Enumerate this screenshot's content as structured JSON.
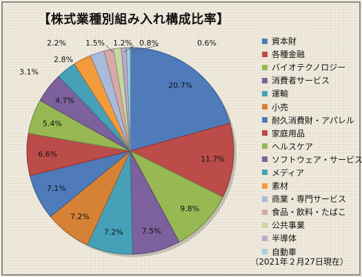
{
  "chart_data": {
    "type": "pie",
    "title": "【株式業種別組み入れ構成比率】",
    "footnote": "（2021年２月27日現在）",
    "slices": [
      {
        "name": "資本財",
        "value": 20.7,
        "label": "20.7%",
        "color": "#4f7bbb"
      },
      {
        "name": "各種金融",
        "value": 11.7,
        "label": "11.7%",
        "color": "#bb4c4a"
      },
      {
        "name": "バイオテクノロジー",
        "value": 9.8,
        "label": "9.8%",
        "color": "#97b853"
      },
      {
        "name": "消費者サービス",
        "value": 7.5,
        "label": "7.5%",
        "color": "#7c619d"
      },
      {
        "name": "運輸",
        "value": 7.2,
        "label": "7.2%",
        "color": "#46a1b8"
      },
      {
        "name": "小売",
        "value": 7.2,
        "label": "7.2%",
        "color": "#d68236"
      },
      {
        "name": "耐久消費財・アパレル",
        "value": 7.1,
        "label": "7.1%",
        "color": "#4f7bbb"
      },
      {
        "name": "家庭用品",
        "value": 6.6,
        "label": "6.6%",
        "color": "#bb4c4a"
      },
      {
        "name": "ヘルスケア",
        "value": 5.4,
        "label": "5.4%",
        "color": "#97b853"
      },
      {
        "name": "ソフトウェア・サービス",
        "value": 4.7,
        "label": "4.7%",
        "color": "#7c619d"
      },
      {
        "name": "メディア",
        "value": 3.1,
        "label": "3.1%",
        "color": "#46a1b8"
      },
      {
        "name": "素材",
        "value": 2.8,
        "label": "2.8%",
        "color": "#f39a3b"
      },
      {
        "name": "商業・専門サービス",
        "value": 2.2,
        "label": "2.2%",
        "color": "#a8bbd8"
      },
      {
        "name": "食品・飲料・たばこ",
        "value": 1.5,
        "label": "1.5%",
        "color": "#d9a9a8"
      },
      {
        "name": "公共事業",
        "value": 1.2,
        "label": "1.2%",
        "color": "#c6d8a4"
      },
      {
        "name": "半導体",
        "value": 0.8,
        "label": "0.8%",
        "color": "#b9abcb"
      },
      {
        "name": "自動車",
        "value": 0.6,
        "label": "0.6%",
        "color": "#a3d0dc"
      }
    ]
  }
}
